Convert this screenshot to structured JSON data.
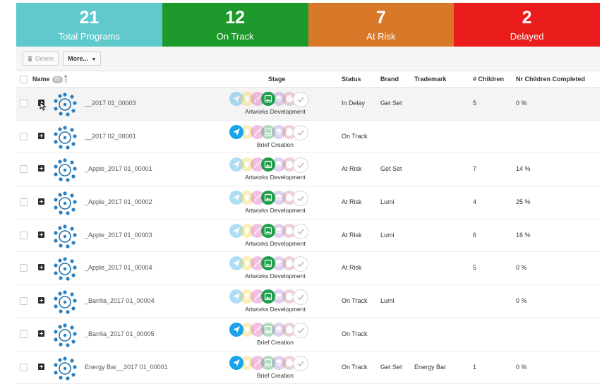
{
  "kpis": [
    {
      "value": "21",
      "label": "Total Programs",
      "color": "#60c9cc"
    },
    {
      "value": "12",
      "label": "On Track",
      "color": "#1e9a2c"
    },
    {
      "value": "7",
      "label": "At Risk",
      "color": "#d8792a"
    },
    {
      "value": "2",
      "label": "Delayed",
      "color": "#ea1b1b"
    }
  ],
  "toolbar": {
    "delete_label": "Delete",
    "more_label": "More..."
  },
  "table": {
    "headers": {
      "name": "Name",
      "count_badge": "21",
      "stage": "Stage",
      "status": "Status",
      "brand": "Brand",
      "trademark": "Trademark",
      "children": "# Children",
      "completed": "Nr Children Completed"
    },
    "stage_icons": [
      "send-icon",
      "lightbulb-icon",
      "brush-icon",
      "image-icon",
      "layers-icon",
      "printer-icon",
      "checkmark-icon"
    ],
    "stage_colors": {
      "send": "#1aa3e8",
      "lightbulb": "#f4d03f",
      "brush": "#d94fb5",
      "image": "#1e9e4a",
      "layers": "#a97fd1",
      "printer": "#c9848c",
      "check": "#c9c9c9"
    },
    "rows": [
      {
        "name": "__2017 01_00003",
        "stage": "Artworks Development",
        "active": 3,
        "status": "In Delay",
        "brand": "Get Set",
        "trademark": "",
        "children": "5",
        "completed": "0 %",
        "highlight": true
      },
      {
        "name": "__2017 02_00001",
        "stage": "Brief Creation",
        "active": 0,
        "status": "On Track",
        "brand": "",
        "trademark": "",
        "children": "",
        "completed": ""
      },
      {
        "name": "_Apple_2017 01_00001",
        "stage": "Artworks Development",
        "active": 3,
        "status": "At Risk",
        "brand": "Get Set",
        "trademark": "",
        "children": "7",
        "completed": "14 %"
      },
      {
        "name": "_Apple_2017 01_00002",
        "stage": "Artworks Development",
        "active": 3,
        "status": "At Risk",
        "brand": "Lumi",
        "trademark": "",
        "children": "4",
        "completed": "25 %"
      },
      {
        "name": "_Apple_2017 01_00003",
        "stage": "Artworks Development",
        "active": 3,
        "status": "At Risk",
        "brand": "Lumi",
        "trademark": "",
        "children": "6",
        "completed": "16 %"
      },
      {
        "name": "_Apple_2017 01_00004",
        "stage": "Artworks Development",
        "active": 3,
        "status": "At Risk",
        "brand": "",
        "trademark": "",
        "children": "5",
        "completed": "0 %"
      },
      {
        "name": "_Barrlia_2017 01_00004",
        "stage": "Artworks Development",
        "active": 3,
        "status": "On Track",
        "brand": "Lumi",
        "trademark": "",
        "children": "",
        "completed": "0 %"
      },
      {
        "name": "_Barrlia_2017 01_00005",
        "stage": "Brief Creation",
        "active": 0,
        "status": "On Track",
        "brand": "",
        "trademark": "",
        "children": "",
        "completed": ""
      },
      {
        "name": "Energy Bar__2017 01_00001",
        "stage": "Brief Creation",
        "active": 0,
        "status": "On Track",
        "brand": "Get Set",
        "trademark": "Energy Bar",
        "children": "1",
        "completed": "0 %"
      }
    ]
  }
}
